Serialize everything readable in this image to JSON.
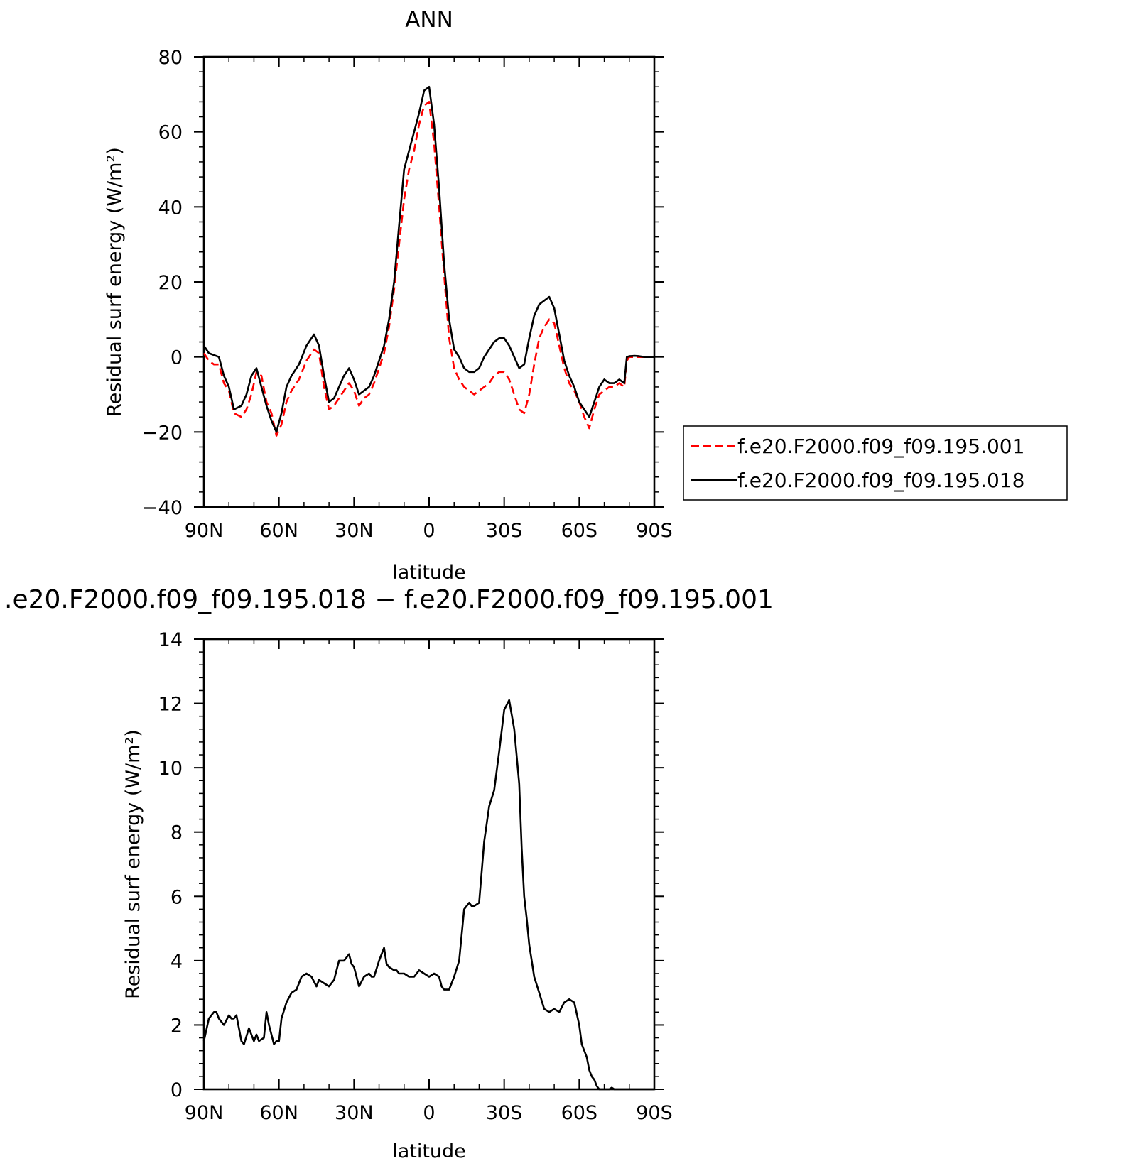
{
  "chart_data": [
    {
      "type": "line",
      "title": "ANN",
      "xlabel": "latitude",
      "ylabel": "Residual surf energy (W/m²)",
      "xlim": [
        90,
        -90
      ],
      "ylim": [
        -40,
        80
      ],
      "xticks": [
        {
          "value": 90,
          "label": "90N"
        },
        {
          "value": 60,
          "label": "60N"
        },
        {
          "value": 30,
          "label": "30N"
        },
        {
          "value": 0,
          "label": "0"
        },
        {
          "value": -30,
          "label": "30S"
        },
        {
          "value": -60,
          "label": "60S"
        },
        {
          "value": -90,
          "label": "90S"
        }
      ],
      "yticks": [
        {
          "value": 80,
          "label": "80"
        },
        {
          "value": 60,
          "label": "60"
        },
        {
          "value": 40,
          "label": "40"
        },
        {
          "value": 20,
          "label": "20"
        },
        {
          "value": 0,
          "label": "0"
        },
        {
          "value": -20,
          "label": "−20"
        },
        {
          "value": -40,
          "label": "−40"
        }
      ],
      "grid": false,
      "legend": "right",
      "series": [
        {
          "name": "f.e20.F2000.f09_f09.195.001",
          "color": "#ff0000",
          "dash": "dashed",
          "x": [
            90,
            88,
            86,
            84,
            82,
            80,
            78,
            75,
            73,
            71,
            69,
            67,
            65,
            63,
            61,
            59,
            57,
            55,
            52,
            49,
            46,
            44,
            42,
            40,
            38,
            36,
            34,
            32,
            30,
            28,
            26,
            24,
            22,
            20,
            18,
            16,
            14,
            12,
            10,
            8,
            6,
            4,
            2,
            0,
            -2,
            -4,
            -6,
            -8,
            -10,
            -12,
            -14,
            -16,
            -18,
            -20,
            -22,
            -24,
            -26,
            -28,
            -30,
            -32,
            -34,
            -36,
            -38,
            -40,
            -42,
            -44,
            -46,
            -48,
            -50,
            -52,
            -54,
            -56,
            -58,
            -60,
            -62,
            -64,
            -66,
            -68,
            -70,
            -72,
            -74,
            -76,
            -78,
            -79,
            -80,
            -82,
            -84,
            -86,
            -88,
            -90
          ],
          "y": [
            1,
            -1,
            -2,
            -2,
            -7,
            -9,
            -15,
            -16,
            -14,
            -10,
            -4,
            -5,
            -12,
            -15,
            -21,
            -18,
            -12,
            -9,
            -6,
            -1,
            2,
            1,
            -8,
            -14,
            -13,
            -11,
            -9,
            -7,
            -9,
            -13,
            -11,
            -10,
            -7,
            -3,
            1,
            8,
            18,
            30,
            42,
            50,
            55,
            62,
            67,
            68,
            57,
            40,
            22,
            5,
            -3,
            -6,
            -8,
            -9,
            -10,
            -9,
            -8,
            -7,
            -5,
            -4,
            -4,
            -6,
            -10,
            -14,
            -15,
            -10,
            -2,
            5,
            8,
            10,
            9,
            3,
            -3,
            -7,
            -9,
            -12,
            -16,
            -19,
            -14,
            -10,
            -9,
            -8,
            -8,
            -7,
            -8,
            -1,
            0,
            0,
            0,
            0,
            0,
            0
          ]
        },
        {
          "name": "f.e20.F2000.f09_f09.195.018",
          "color": "#000000",
          "dash": "solid",
          "x": [
            90,
            88,
            86,
            84,
            82,
            80,
            78,
            75,
            73,
            71,
            69,
            67,
            65,
            63,
            61,
            59,
            57,
            55,
            52,
            49,
            46,
            44,
            42,
            40,
            38,
            36,
            34,
            32,
            30,
            28,
            26,
            24,
            22,
            20,
            18,
            16,
            14,
            12,
            10,
            8,
            6,
            4,
            2,
            0,
            -2,
            -4,
            -6,
            -8,
            -10,
            -12,
            -14,
            -16,
            -18,
            -20,
            -22,
            -24,
            -26,
            -28,
            -30,
            -32,
            -34,
            -36,
            -38,
            -40,
            -42,
            -44,
            -46,
            -48,
            -50,
            -52,
            -54,
            -56,
            -58,
            -60,
            -62,
            -64,
            -66,
            -68,
            -70,
            -72,
            -74,
            -76,
            -78,
            -79,
            -80,
            -82,
            -84,
            -86,
            -88,
            -90
          ],
          "y": [
            3,
            1,
            0.5,
            0,
            -5,
            -8,
            -14,
            -13,
            -10,
            -5,
            -3,
            -8,
            -13,
            -17,
            -20,
            -15,
            -8,
            -5,
            -2,
            3,
            6,
            3,
            -5,
            -12,
            -11,
            -8,
            -5,
            -3,
            -6,
            -10,
            -9,
            -8,
            -5,
            -1,
            3,
            10,
            20,
            35,
            50,
            55,
            60,
            65,
            71,
            72,
            62,
            45,
            25,
            10,
            2,
            0,
            -3,
            -4,
            -4,
            -3,
            0,
            2,
            4,
            5,
            5,
            3,
            0,
            -3,
            -2,
            5,
            11,
            14,
            15,
            16,
            13,
            6,
            -1,
            -5,
            -8,
            -12,
            -14,
            -16,
            -12,
            -8,
            -6,
            -7,
            -7,
            -6,
            -7,
            0,
            0.2,
            0.3,
            0.2,
            0,
            0,
            0
          ]
        }
      ]
    },
    {
      "type": "line",
      "title": ".e20.F2000.f09_f09.195.018 − f.e20.F2000.f09_f09.195.001",
      "xlabel": "latitude",
      "ylabel": "Residual surf energy (W/m²)",
      "xlim": [
        90,
        -90
      ],
      "ylim": [
        0,
        14
      ],
      "xticks": [
        {
          "value": 90,
          "label": "90N"
        },
        {
          "value": 60,
          "label": "60N"
        },
        {
          "value": 30,
          "label": "30N"
        },
        {
          "value": 0,
          "label": "0"
        },
        {
          "value": -30,
          "label": "30S"
        },
        {
          "value": -60,
          "label": "60S"
        },
        {
          "value": -90,
          "label": "90S"
        }
      ],
      "yticks": [
        {
          "value": 14,
          "label": "14"
        },
        {
          "value": 12,
          "label": "12"
        },
        {
          "value": 10,
          "label": "10"
        },
        {
          "value": 8,
          "label": "8"
        },
        {
          "value": 6,
          "label": "6"
        },
        {
          "value": 4,
          "label": "4"
        },
        {
          "value": 2,
          "label": "2"
        },
        {
          "value": 0,
          "label": "0"
        }
      ],
      "grid": false,
      "series": [
        {
          "color": "#000000",
          "dash": "solid",
          "x": [
            90,
            88,
            86,
            85,
            84,
            82,
            80,
            79,
            78,
            77,
            75,
            74,
            72,
            70,
            69,
            68,
            66,
            65,
            64,
            62,
            61,
            60,
            59,
            57,
            55,
            53,
            51,
            49,
            47,
            45,
            44,
            42,
            40,
            38,
            36,
            34,
            32,
            31,
            30,
            28,
            26,
            24,
            23,
            22,
            20,
            18,
            17,
            16,
            14,
            13,
            12,
            10,
            8,
            6,
            4,
            2,
            0,
            -2,
            -4,
            -5,
            -6,
            -8,
            -10,
            -12,
            -14,
            -16,
            -17,
            -18,
            -20,
            -22,
            -24,
            -26,
            -28,
            -30,
            -32,
            -34,
            -36,
            -37,
            -38,
            -39,
            -40,
            -42,
            -44,
            -46,
            -48,
            -50,
            -52,
            -54,
            -56,
            -58,
            -60,
            -61,
            -62,
            -63,
            -64,
            -65,
            -66,
            -67,
            -68,
            -69,
            -70,
            -71,
            -72,
            -73,
            -74,
            -75,
            -76,
            -77,
            -78,
            -79,
            -80,
            -82,
            -84,
            -86,
            -88,
            -90
          ],
          "y": [
            1.5,
            2.2,
            2.4,
            2.4,
            2.2,
            2.0,
            2.3,
            2.2,
            2.2,
            2.3,
            1.5,
            1.4,
            1.9,
            1.5,
            1.7,
            1.5,
            1.6,
            2.4,
            2.0,
            1.4,
            1.5,
            1.5,
            2.2,
            2.7,
            3.0,
            3.1,
            3.5,
            3.6,
            3.5,
            3.2,
            3.4,
            3.3,
            3.2,
            3.4,
            4.0,
            4.0,
            4.2,
            3.9,
            3.8,
            3.2,
            3.5,
            3.6,
            3.5,
            3.5,
            4.0,
            4.4,
            3.9,
            3.8,
            3.7,
            3.7,
            3.6,
            3.6,
            3.5,
            3.5,
            3.7,
            3.6,
            3.5,
            3.6,
            3.5,
            3.2,
            3.1,
            3.1,
            3.5,
            4.0,
            5.6,
            5.8,
            5.7,
            5.7,
            5.8,
            7.7,
            8.8,
            9.3,
            10.5,
            11.8,
            12.1,
            11.2,
            9.5,
            7.5,
            6.0,
            5.3,
            4.5,
            3.5,
            3.0,
            2.5,
            2.4,
            2.5,
            2.4,
            2.7,
            2.8,
            2.7,
            2.0,
            1.4,
            1.2,
            1.0,
            0.6,
            0.4,
            0.3,
            0.1,
            0.0,
            0.0,
            0.0,
            0.0,
            0.0,
            0.05,
            0.0,
            0.0,
            0.0,
            0.0,
            0.0,
            0.0,
            0.0,
            0.0,
            0.0,
            0.0,
            0.0,
            0.0
          ]
        }
      ]
    }
  ]
}
